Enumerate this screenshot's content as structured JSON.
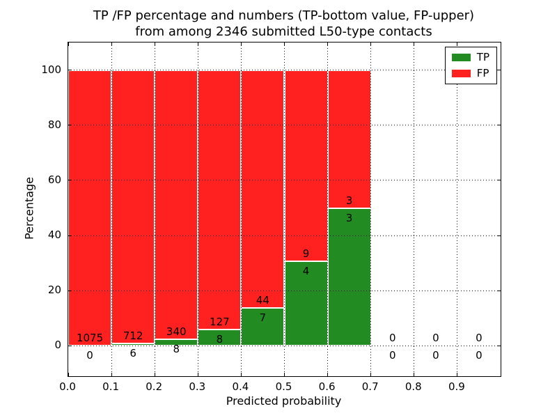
{
  "chart_data": {
    "type": "bar",
    "stacked": true,
    "normalized": "percent",
    "title_line1": "TP /FP percentage and numbers (TP-bottom value, FP-upper)",
    "title_line2": "from among 2346 submitted L50-type contacts",
    "xlabel": "Predicted probability",
    "ylabel": "Percentage",
    "xlim": [
      0.0,
      1.0
    ],
    "ylim": [
      -11,
      110
    ],
    "x_tick_labels": [
      "0.0",
      "0.1",
      "0.2",
      "0.3",
      "0.4",
      "0.5",
      "0.6",
      "0.7",
      "0.8",
      "0.9"
    ],
    "x_tick_values": [
      0.0,
      0.1,
      0.2,
      0.3,
      0.4,
      0.5,
      0.6,
      0.7,
      0.8,
      0.9
    ],
    "y_ticks": [
      0,
      20,
      40,
      60,
      80,
      100
    ],
    "grid": "dotted",
    "bin_width": 0.1,
    "annotation_scheme": "TP count below segment boundary, FP count above segment boundary",
    "bins": [
      {
        "x0": 0.0,
        "x1": 0.1,
        "tp": 0,
        "fp": 1075
      },
      {
        "x0": 0.1,
        "x1": 0.2,
        "tp": 6,
        "fp": 712
      },
      {
        "x0": 0.2,
        "x1": 0.3,
        "tp": 8,
        "fp": 340
      },
      {
        "x0": 0.3,
        "x1": 0.4,
        "tp": 8,
        "fp": 127
      },
      {
        "x0": 0.4,
        "x1": 0.5,
        "tp": 7,
        "fp": 44
      },
      {
        "x0": 0.5,
        "x1": 0.6,
        "tp": 4,
        "fp": 9
      },
      {
        "x0": 0.6,
        "x1": 0.7,
        "tp": 3,
        "fp": 3
      },
      {
        "x0": 0.7,
        "x1": 0.8,
        "tp": 0,
        "fp": 0
      },
      {
        "x0": 0.8,
        "x1": 0.9,
        "tp": 0,
        "fp": 0
      },
      {
        "x0": 0.9,
        "x1": 1.0,
        "tp": 0,
        "fp": 0
      }
    ],
    "legend": [
      {
        "label": "TP",
        "color": "#228b22"
      },
      {
        "label": "FP",
        "color": "#ff2020"
      }
    ],
    "legend_position": "upper right",
    "text_color": "#000000",
    "background_color": "#ffffff"
  }
}
